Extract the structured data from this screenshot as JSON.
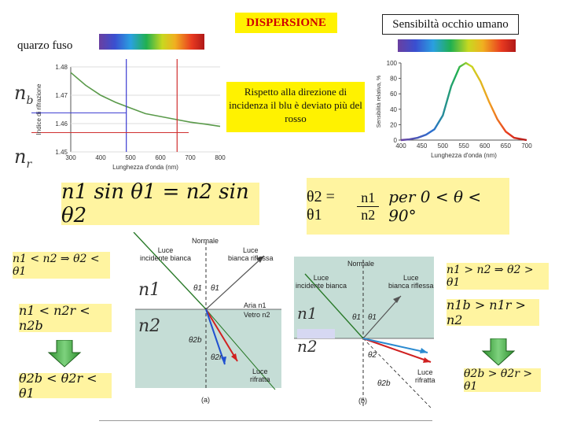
{
  "title": "DISPERSIONE",
  "sensitivity_title": "Sensibiltà occhio umano",
  "material_label": "quarzo fuso",
  "note": "Rispetto alla direzione di incidenza il blu è deviato più del rosso",
  "nb_label": "n",
  "nb_sub": "b",
  "nr_label": "n",
  "nr_sub": "r",
  "snell_law": "n1 sin θ1 = n2 sin θ2",
  "theta2_eq_prefix": "θ2 = θ1",
  "theta2_frac_num": "n1",
  "theta2_frac_den": "n2",
  "theta2_condition": "per 0 < θ < 90°",
  "left_cond1": "n1 < n2 ⇒ θ2 < θ1",
  "left_cond2": "n1 < n2r < n2b",
  "left_result": "θ2b < θ2r < θ1",
  "right_cond1": "n1 > n2 ⇒ θ2 > θ1",
  "right_cond2": "n1b > n1r > n2",
  "right_result": "θ2b > θ2r > θ1",
  "diagram_a": {
    "n1": "n1",
    "n2": "n2",
    "normal": "Normale",
    "incident": "Luce\nincidente bianca",
    "reflected": "Luce\nbianca riflessa",
    "refracted": "Luce\nrifratta",
    "air": "Aria  n1",
    "glass": "Vetro n2",
    "theta1": "θ1",
    "theta1p": "θ1",
    "theta2b": "θ2b",
    "theta2r": "θ2r",
    "caption": "(a)"
  },
  "diagram_b": {
    "n1": "n1",
    "n2": "n2",
    "normal": "Normale",
    "incident": "Luce\nincidente bianca",
    "reflected": "Luce\nbianca riflessa",
    "refracted": "Luce\nrifratta",
    "theta1": "θ1",
    "theta1p": "θ1",
    "theta2": "θ2",
    "theta2b": "θ2b",
    "caption": "(b)"
  },
  "dispersion_chart": {
    "xlabel": "Lunghezza d'onda (nm)",
    "ylabel": "Indice di rifrazione",
    "xticks": [
      "300",
      "400",
      "500",
      "600",
      "700",
      "800"
    ],
    "yticks": [
      "1.48",
      "1.47",
      "1.46",
      "1.45"
    ],
    "curve": [
      [
        300,
        1.478
      ],
      [
        350,
        1.4735
      ],
      [
        400,
        1.47
      ],
      [
        450,
        1.4675
      ],
      [
        500,
        1.4655
      ],
      [
        550,
        1.4635
      ],
      [
        600,
        1.4625
      ],
      [
        650,
        1.4615
      ],
      [
        700,
        1.4605
      ],
      [
        750,
        1.4598
      ],
      [
        800,
        1.459
      ]
    ],
    "marker_blue_x": 486,
    "marker_red_x": 656
  },
  "chart_data": {
    "type": "line",
    "title": "",
    "xlabel": "Lunghezza d'onda (nm)",
    "ylabel": "Sensibilità relativa, %",
    "xticks": [
      "400",
      "450",
      "500",
      "550",
      "600",
      "650",
      "700"
    ],
    "yticks": [
      "0",
      "20",
      "40",
      "60",
      "80",
      "100"
    ],
    "xlim": [
      400,
      700
    ],
    "ylim": [
      0,
      100
    ],
    "x": [
      400,
      420,
      440,
      460,
      480,
      500,
      520,
      540,
      555,
      570,
      590,
      610,
      630,
      650,
      670,
      690,
      700
    ],
    "y": [
      0,
      1,
      3,
      7,
      14,
      32,
      70,
      95,
      100,
      95,
      76,
      50,
      27,
      11,
      3,
      1,
      0
    ]
  }
}
